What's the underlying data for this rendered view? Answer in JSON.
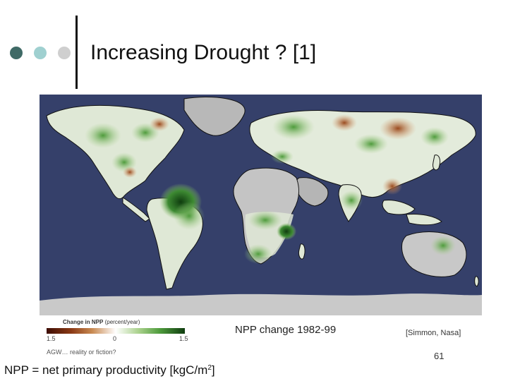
{
  "slide": {
    "title": "Increasing Drought ? [1]",
    "bullet_dot_colors": [
      "#3f6a66",
      "#9fd0d0",
      "#cfcfcf"
    ]
  },
  "map": {
    "ocean_color": "#35406a",
    "legend": {
      "title_main": "Change in NPP",
      "title_unit": "(percent/year)",
      "ticks": [
        "1.5",
        "0",
        "1.5"
      ]
    }
  },
  "caption": "NPP change 1982-99",
  "source": "[Simmon, Nasa]",
  "footer_left": "AGW… reality or fiction?",
  "page_number": "61",
  "definition": {
    "text": "NPP = net primary productivity [kgC/m",
    "sup": "2",
    "close": "]"
  }
}
